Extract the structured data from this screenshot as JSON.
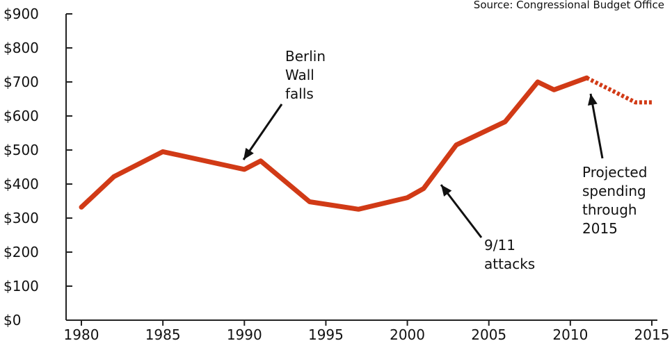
{
  "source": "Source: Congressional Budget Office",
  "colors": {
    "series": "#d13a16",
    "axis": "#222222",
    "text": "#111111"
  },
  "chart_data": {
    "type": "line",
    "title": "",
    "xlabel": "",
    "ylabel": "",
    "xlim": [
      1980,
      2015
    ],
    "ylim": [
      0,
      900
    ],
    "grid": false,
    "x_ticks": [
      1980,
      1985,
      1990,
      1995,
      2000,
      2005,
      2010,
      2015
    ],
    "x_tick_labels": [
      "1980",
      "1985",
      "1990",
      "1995",
      "2000",
      "2005",
      "2010",
      "2015"
    ],
    "y_ticks": [
      0,
      100,
      200,
      300,
      400,
      500,
      600,
      700,
      800,
      900
    ],
    "y_tick_labels": [
      "$0",
      "$100",
      "$200",
      "$300",
      "$400",
      "$500",
      "$600",
      "$700",
      "$800",
      "$900"
    ],
    "series": [
      {
        "style": "solid",
        "x": [
          1980,
          1982,
          1985,
          1990,
          1991,
          1994,
          1997,
          2000,
          2001,
          2003,
          2006,
          2008,
          2009,
          2011
        ],
        "values": [
          332,
          422,
          495,
          443,
          468,
          348,
          326,
          360,
          387,
          515,
          583,
          700,
          677,
          712
        ]
      },
      {
        "style": "dashed",
        "x": [
          2011,
          2014,
          2015
        ],
        "values": [
          712,
          640,
          640
        ]
      }
    ],
    "annotations": [
      {
        "lines": [
          "Berlin",
          "Wall",
          "falls"
        ],
        "x": 1990,
        "y": 443
      },
      {
        "lines": [
          "9/11",
          "attacks"
        ],
        "x": 2002,
        "y": 425
      },
      {
        "lines": [
          "Projected",
          "spending",
          "through",
          "2015"
        ],
        "x": 2011,
        "y": 705
      }
    ]
  }
}
